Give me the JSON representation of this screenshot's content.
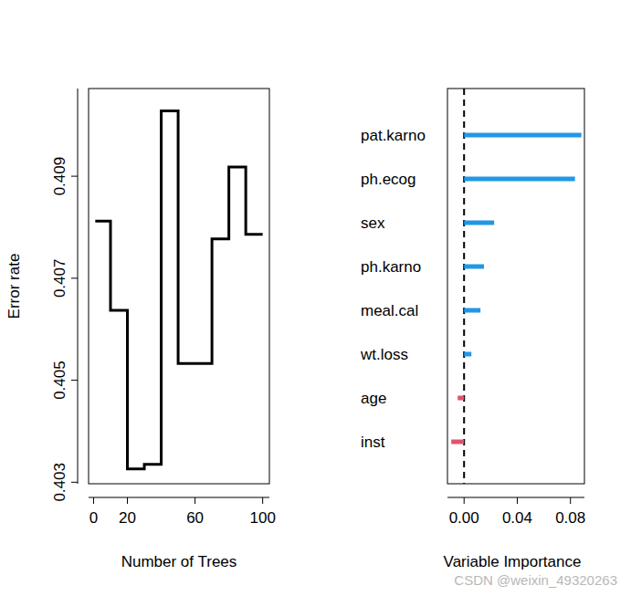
{
  "chart_data": [
    {
      "type": "line",
      "line_style": "step",
      "color": "#000000",
      "x_label": "Number of Trees",
      "y_label": "Error rate",
      "x": [
        1,
        10,
        20,
        30,
        40,
        50,
        60,
        70,
        80,
        90,
        100
      ],
      "values": [
        0.40812,
        0.40637,
        0.40326,
        0.40335,
        0.41028,
        0.40533,
        0.40533,
        0.40777,
        0.40918,
        0.40786,
        0.40786
      ],
      "xlim": [
        -2.96,
        103.96
      ],
      "xticks": [
        0,
        20,
        60,
        100
      ],
      "ylim": [
        0.40297,
        0.41072
      ],
      "yticks": [
        0.403,
        0.405,
        0.407,
        0.409
      ]
    },
    {
      "type": "bar",
      "orientation": "horizontal",
      "x_label": "Variable Importance",
      "categories": [
        "pat.karno",
        "ph.ecog",
        "sex",
        "ph.karno",
        "meal.cal",
        "wt.loss",
        "age",
        "inst"
      ],
      "values": [
        0.0882,
        0.0834,
        0.0226,
        0.015,
        0.0123,
        0.0055,
        -0.0048,
        -0.0096
      ],
      "colors": [
        "#2297E6",
        "#2297E6",
        "#2297E6",
        "#2297E6",
        "#2297E6",
        "#2297E6",
        "#DF536B",
        "#DF536B"
      ],
      "xlim": [
        -0.0125,
        0.0905
      ],
      "xticks": [
        {
          "value": 0,
          "label": "0.00"
        },
        {
          "value": 0.04,
          "label": "0.04"
        },
        {
          "value": 0.08,
          "label": "0.08"
        }
      ]
    }
  ],
  "watermark": "CSDN @weixin_49320263"
}
